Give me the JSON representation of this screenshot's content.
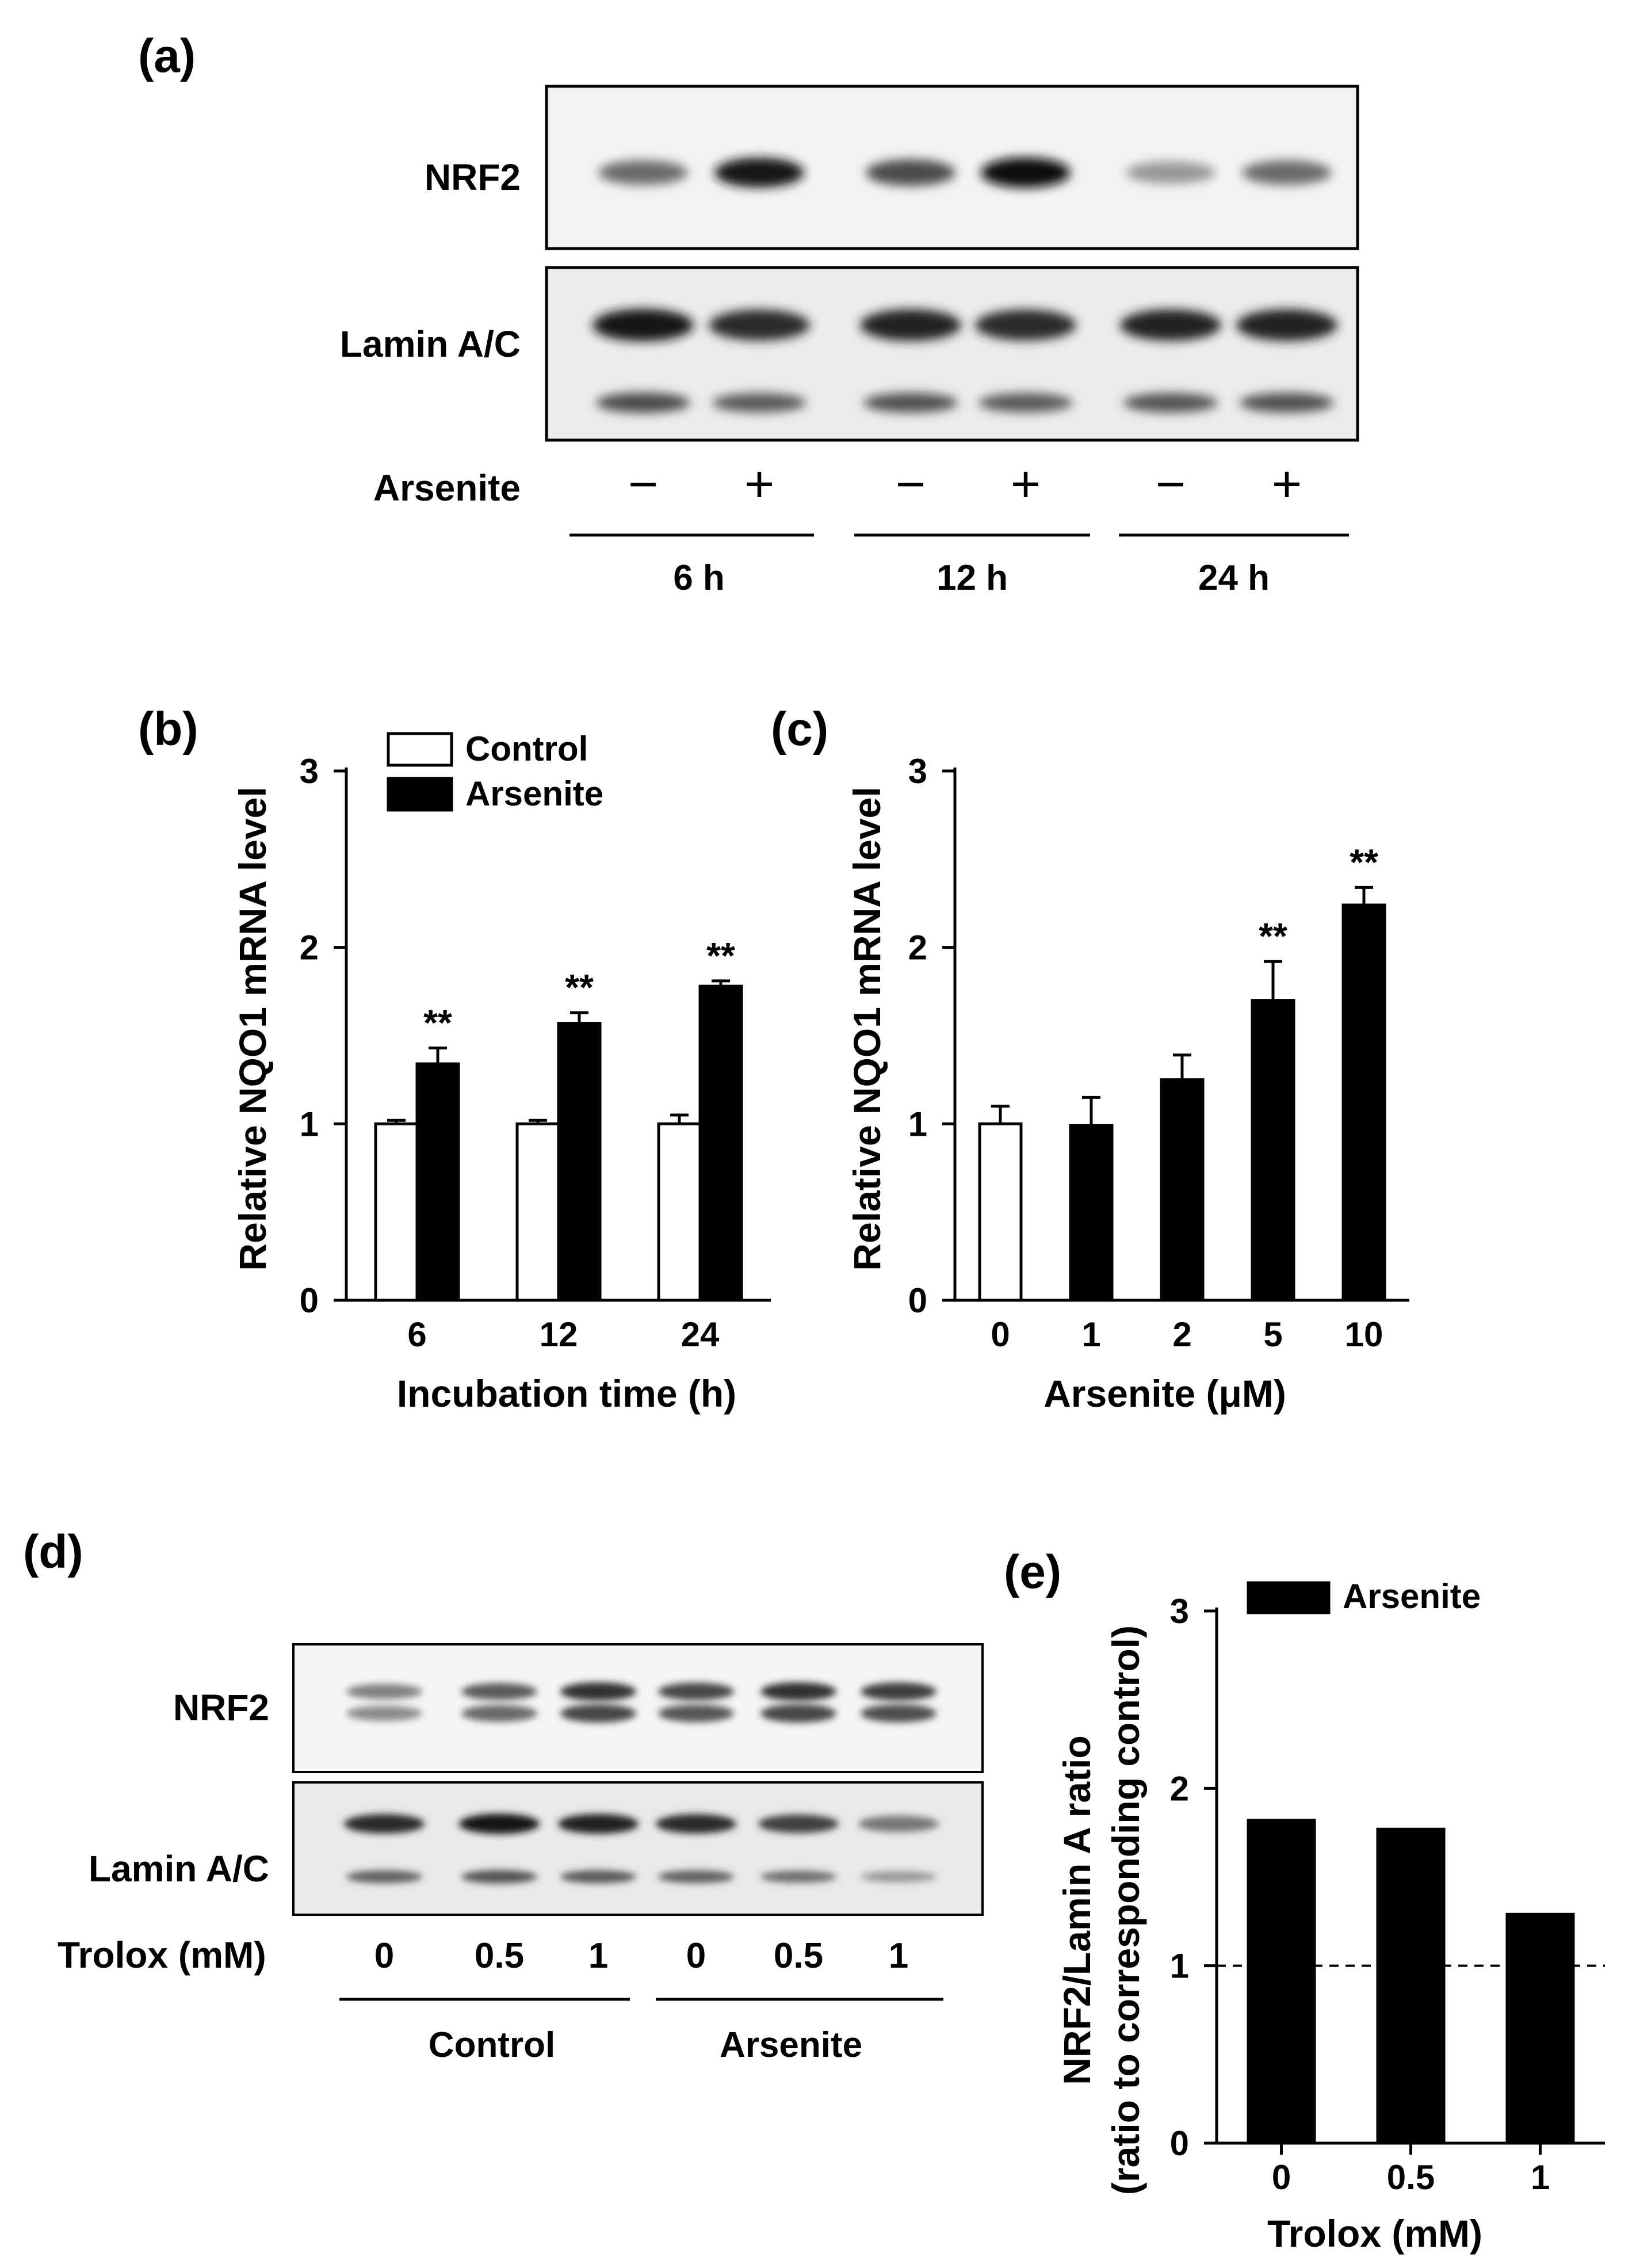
{
  "panels": {
    "a": {
      "label": "(a)",
      "rows": [
        "NRF2",
        "Lamin A/C"
      ],
      "treatment_label": "Arsenite",
      "treatment_signs": [
        "−",
        "+",
        "−",
        "+",
        "−",
        "+"
      ],
      "groups": [
        "6 h",
        "12 h",
        "24 h"
      ],
      "band_intensity": {
        "NRF2": [
          0.55,
          0.95,
          0.7,
          1.0,
          0.35,
          0.55
        ],
        "Lamin A/C": [
          0.95,
          0.85,
          0.9,
          0.85,
          0.88,
          0.9
        ]
      }
    },
    "d": {
      "label": "(d)",
      "rows": [
        "NRF2",
        "Lamin A/C"
      ],
      "treatment_label": "Trolox (mM)",
      "lane_labels": [
        "0",
        "0.5",
        "1",
        "0",
        "0.5",
        "1"
      ],
      "groups": [
        "Control",
        "Arsenite"
      ],
      "band_intensity": {
        "NRF2": [
          0.5,
          0.7,
          0.9,
          0.8,
          0.9,
          0.85
        ],
        "Lamin A/C": [
          0.85,
          0.95,
          0.9,
          0.85,
          0.75,
          0.5
        ]
      }
    }
  },
  "chart_data": [
    {
      "panel": "b",
      "label": "(b)",
      "type": "bar",
      "categories": [
        "6",
        "12",
        "24"
      ],
      "series": [
        {
          "name": "Control",
          "values": [
            1.0,
            1.0,
            1.0
          ],
          "errors": [
            0.02,
            0.02,
            0.05
          ],
          "color": "#ffffff"
        },
        {
          "name": "Arsenite",
          "values": [
            1.34,
            1.57,
            1.78
          ],
          "errors": [
            0.09,
            0.06,
            0.03
          ],
          "color": "#000000"
        }
      ],
      "significance": {
        "series": "Arsenite",
        "marks": [
          "**",
          "**",
          "**"
        ]
      },
      "xlabel": "Incubation time (h)",
      "ylabel": "Relative NQO1 mRNA level",
      "ylim": [
        0,
        3
      ],
      "yticks": [
        "0",
        "1",
        "2",
        "3"
      ],
      "legend": "top-left"
    },
    {
      "panel": "c",
      "label": "(c)",
      "type": "bar",
      "categories": [
        "0",
        "1",
        "2",
        "5",
        "10"
      ],
      "values": [
        1.0,
        0.99,
        1.25,
        1.7,
        2.24
      ],
      "errors": [
        0.1,
        0.16,
        0.14,
        0.22,
        0.1
      ],
      "bar_colors": [
        "#ffffff",
        "#000000",
        "#000000",
        "#000000",
        "#000000"
      ],
      "significance": [
        "",
        "",
        "",
        "**",
        "**"
      ],
      "xlabel": "Arsenite (μM)",
      "ylabel": "Relative NQO1 mRNA level",
      "ylim": [
        0,
        3
      ],
      "yticks": [
        "0",
        "1",
        "2",
        "3"
      ]
    },
    {
      "panel": "e",
      "label": "(e)",
      "type": "bar",
      "categories": [
        "0",
        "0.5",
        "1"
      ],
      "series": [
        {
          "name": "Arsenite",
          "values": [
            1.82,
            1.77,
            1.29
          ],
          "color": "#000000"
        }
      ],
      "reference_line": 1,
      "xlabel": "Trolox (mM)",
      "ylabel": [
        "NRF2/Lamin A ratio",
        "(ratio to corresponding control)"
      ],
      "ylim": [
        0,
        3
      ],
      "yticks": [
        "0",
        "1",
        "2",
        "3"
      ],
      "legend": "top-left"
    }
  ]
}
